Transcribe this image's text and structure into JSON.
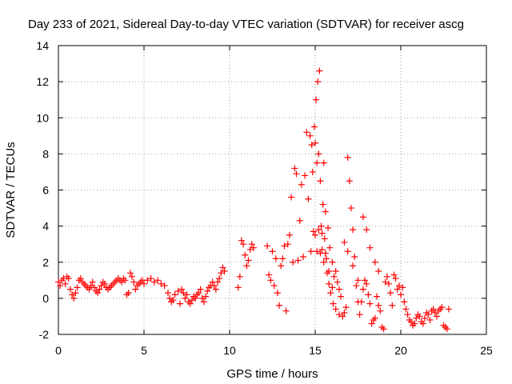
{
  "chart_data": {
    "type": "scatter",
    "title": "Day 233 of 2021, Sidereal Day-to-day VTEC variation (SDTVAR) for receiver ascg",
    "xlabel": "GPS time / hours",
    "ylabel": "SDTVAR / TECUs",
    "xlim": [
      0,
      25
    ],
    "ylim": [
      -2,
      14
    ],
    "xticks": [
      "0",
      "5",
      "10",
      "15",
      "20",
      "25"
    ],
    "yticks": [
      "-2",
      "0",
      "2",
      "4",
      "6",
      "8",
      "10",
      "12",
      "14"
    ],
    "grid": true,
    "marker": "+",
    "series_color": "#ff0000",
    "series": [
      {
        "name": "SDTVAR",
        "points": [
          [
            0.0,
            0.9
          ],
          [
            0.1,
            0.7
          ],
          [
            0.2,
            1.0
          ],
          [
            0.3,
            1.1
          ],
          [
            0.4,
            0.8
          ],
          [
            0.5,
            1.2
          ],
          [
            0.6,
            1.1
          ],
          [
            0.7,
            0.5
          ],
          [
            0.8,
            0.2
          ],
          [
            0.9,
            0.0
          ],
          [
            1.0,
            0.3
          ],
          [
            1.1,
            0.6
          ],
          [
            1.2,
            1.0
          ],
          [
            1.3,
            1.1
          ],
          [
            1.4,
            0.9
          ],
          [
            1.5,
            0.8
          ],
          [
            1.6,
            0.7
          ],
          [
            1.7,
            0.6
          ],
          [
            1.8,
            0.5
          ],
          [
            1.9,
            0.7
          ],
          [
            2.0,
            0.9
          ],
          [
            2.1,
            0.6
          ],
          [
            2.2,
            0.4
          ],
          [
            2.3,
            0.3
          ],
          [
            2.4,
            0.5
          ],
          [
            2.5,
            0.7
          ],
          [
            2.6,
            0.9
          ],
          [
            2.7,
            0.8
          ],
          [
            2.8,
            0.6
          ],
          [
            2.9,
            0.5
          ],
          [
            3.0,
            0.6
          ],
          [
            3.1,
            0.7
          ],
          [
            3.2,
            0.8
          ],
          [
            3.3,
            0.9
          ],
          [
            3.4,
            1.0
          ],
          [
            3.5,
            1.1
          ],
          [
            3.6,
            1.0
          ],
          [
            3.7,
            0.9
          ],
          [
            3.8,
            1.1
          ],
          [
            3.9,
            1.0
          ],
          [
            4.0,
            0.2
          ],
          [
            4.1,
            0.3
          ],
          [
            4.2,
            1.4
          ],
          [
            4.3,
            1.2
          ],
          [
            4.4,
            0.9
          ],
          [
            4.5,
            0.5
          ],
          [
            4.6,
            0.7
          ],
          [
            4.7,
            0.8
          ],
          [
            4.8,
            0.9
          ],
          [
            4.9,
            1.0
          ],
          [
            5.0,
            0.8
          ],
          [
            5.2,
            1.0
          ],
          [
            5.4,
            1.1
          ],
          [
            5.6,
            0.9
          ],
          [
            5.8,
            1.0
          ],
          [
            6.0,
            0.8
          ],
          [
            6.2,
            0.7
          ],
          [
            6.4,
            0.3
          ],
          [
            6.5,
            0.0
          ],
          [
            6.6,
            -0.2
          ],
          [
            6.7,
            -0.1
          ],
          [
            6.8,
            0.2
          ],
          [
            7.0,
            0.4
          ],
          [
            7.1,
            -0.3
          ],
          [
            7.2,
            0.5
          ],
          [
            7.3,
            0.3
          ],
          [
            7.4,
            0.0
          ],
          [
            7.5,
            0.2
          ],
          [
            7.6,
            -0.2
          ],
          [
            7.7,
            -0.3
          ],
          [
            7.8,
            -0.1
          ],
          [
            7.9,
            0.1
          ],
          [
            8.0,
            0.0
          ],
          [
            8.1,
            0.2
          ],
          [
            8.2,
            0.3
          ],
          [
            8.3,
            0.5
          ],
          [
            8.4,
            0.0
          ],
          [
            8.5,
            -0.2
          ],
          [
            8.6,
            0.1
          ],
          [
            8.7,
            0.4
          ],
          [
            8.8,
            0.6
          ],
          [
            8.9,
            0.7
          ],
          [
            9.0,
            0.9
          ],
          [
            9.1,
            0.7
          ],
          [
            9.2,
            0.5
          ],
          [
            9.3,
            0.9
          ],
          [
            9.4,
            1.1
          ],
          [
            9.5,
            1.4
          ],
          [
            9.6,
            1.7
          ],
          [
            9.7,
            1.5
          ],
          [
            10.5,
            0.6
          ],
          [
            10.6,
            1.2
          ],
          [
            10.7,
            3.2
          ],
          [
            10.8,
            3.0
          ],
          [
            10.9,
            2.4
          ],
          [
            11.0,
            1.8
          ],
          [
            11.1,
            2.1
          ],
          [
            11.2,
            2.7
          ],
          [
            11.3,
            3.0
          ],
          [
            11.4,
            2.8
          ],
          [
            12.2,
            2.9
          ],
          [
            12.3,
            1.3
          ],
          [
            12.4,
            1.0
          ],
          [
            12.5,
            2.6
          ],
          [
            12.6,
            0.7
          ],
          [
            12.7,
            2.2
          ],
          [
            12.8,
            0.3
          ],
          [
            12.9,
            -0.4
          ],
          [
            13.0,
            1.8
          ],
          [
            13.1,
            2.2
          ],
          [
            13.2,
            2.9
          ],
          [
            13.3,
            -0.7
          ],
          [
            13.4,
            3.0
          ],
          [
            13.5,
            3.5
          ],
          [
            13.6,
            5.6
          ],
          [
            13.7,
            2.0
          ],
          [
            13.8,
            7.2
          ],
          [
            13.9,
            6.9
          ],
          [
            14.0,
            2.1
          ],
          [
            14.1,
            4.3
          ],
          [
            14.2,
            6.3
          ],
          [
            14.3,
            2.3
          ],
          [
            14.4,
            6.8
          ],
          [
            14.5,
            9.2
          ],
          [
            14.6,
            5.5
          ],
          [
            14.7,
            9.0
          ],
          [
            14.75,
            2.6
          ],
          [
            14.8,
            8.5
          ],
          [
            14.85,
            7.0
          ],
          [
            14.9,
            3.7
          ],
          [
            14.95,
            9.5
          ],
          [
            15.0,
            8.6
          ],
          [
            15.05,
            11.0
          ],
          [
            15.1,
            7.5
          ],
          [
            15.15,
            12.0
          ],
          [
            15.2,
            8.0
          ],
          [
            15.25,
            12.6
          ],
          [
            15.3,
            6.5
          ],
          [
            15.35,
            4.0
          ],
          [
            15.4,
            2.7
          ],
          [
            15.45,
            5.2
          ],
          [
            15.5,
            7.5
          ],
          [
            15.55,
            3.3
          ],
          [
            15.6,
            4.8
          ],
          [
            15.65,
            2.2
          ],
          [
            15.7,
            1.4
          ],
          [
            15.75,
            3.9
          ],
          [
            15.8,
            0.8
          ],
          [
            15.85,
            2.8
          ],
          [
            15.9,
            0.3
          ],
          [
            16.0,
            2.0
          ],
          [
            16.05,
            -0.3
          ],
          [
            16.1,
            1.2
          ],
          [
            16.2,
            -0.6
          ],
          [
            16.3,
            0.9
          ],
          [
            16.4,
            -0.9
          ],
          [
            16.5,
            0.1
          ],
          [
            16.6,
            -1.0
          ],
          [
            16.7,
            -0.8
          ],
          [
            16.8,
            -0.5
          ],
          [
            16.9,
            7.8
          ],
          [
            17.0,
            6.5
          ],
          [
            17.1,
            5.0
          ],
          [
            17.2,
            3.8
          ],
          [
            17.3,
            2.3
          ],
          [
            17.4,
            0.7
          ],
          [
            17.5,
            -0.2
          ],
          [
            17.6,
            -0.9
          ],
          [
            17.7,
            -0.2
          ],
          [
            17.8,
            0.5
          ],
          [
            17.9,
            1.0
          ],
          [
            18.0,
            0.8
          ],
          [
            18.1,
            0.2
          ],
          [
            18.2,
            -0.3
          ],
          [
            18.3,
            -1.4
          ],
          [
            18.4,
            -1.2
          ],
          [
            18.5,
            -1.1
          ],
          [
            18.6,
            0.1
          ],
          [
            18.7,
            -0.4
          ],
          [
            18.8,
            -0.7
          ],
          [
            18.9,
            -1.6
          ],
          [
            19.0,
            -1.7
          ],
          [
            19.1,
            0.9
          ],
          [
            19.2,
            1.2
          ],
          [
            19.3,
            0.8
          ],
          [
            19.4,
            0.3
          ],
          [
            19.5,
            -0.4
          ],
          [
            19.6,
            1.3
          ],
          [
            19.7,
            1.1
          ],
          [
            19.8,
            0.5
          ],
          [
            19.9,
            0.7
          ],
          [
            20.0,
            0.2
          ],
          [
            20.1,
            0.6
          ],
          [
            20.2,
            -0.2
          ],
          [
            20.3,
            -0.6
          ],
          [
            20.4,
            -0.9
          ],
          [
            20.5,
            -1.2
          ],
          [
            20.6,
            -1.3
          ],
          [
            20.7,
            -1.5
          ],
          [
            20.8,
            -1.4
          ],
          [
            20.9,
            -1.1
          ],
          [
            21.0,
            -0.9
          ],
          [
            21.1,
            -1.0
          ],
          [
            21.2,
            -1.3
          ],
          [
            21.3,
            -1.4
          ],
          [
            21.4,
            -1.1
          ],
          [
            21.5,
            -0.8
          ],
          [
            21.6,
            -0.9
          ],
          [
            21.7,
            -1.2
          ],
          [
            21.8,
            -0.7
          ],
          [
            21.9,
            -0.6
          ],
          [
            22.0,
            -0.8
          ],
          [
            22.1,
            -1.0
          ],
          [
            22.2,
            -0.7
          ],
          [
            22.3,
            -0.6
          ],
          [
            22.4,
            -0.5
          ],
          [
            22.5,
            -1.5
          ],
          [
            22.6,
            -1.6
          ],
          [
            22.7,
            -1.7
          ],
          [
            22.8,
            -0.6
          ],
          [
            15.0,
            3.5
          ],
          [
            15.2,
            3.8
          ],
          [
            15.4,
            3.6
          ],
          [
            15.6,
            2.5
          ],
          [
            15.8,
            1.5
          ],
          [
            16.0,
            0.6
          ],
          [
            16.2,
            1.5
          ],
          [
            16.4,
            0.5
          ],
          [
            16.7,
            3.1
          ],
          [
            16.9,
            2.6
          ],
          [
            17.2,
            1.8
          ],
          [
            17.5,
            1.0
          ],
          [
            17.8,
            4.5
          ],
          [
            18.0,
            3.8
          ],
          [
            18.2,
            2.8
          ],
          [
            18.5,
            2.0
          ],
          [
            18.7,
            1.5
          ],
          [
            15.1,
            2.6
          ],
          [
            15.3,
            2.5
          ],
          [
            15.5,
            2.0
          ]
        ]
      }
    ]
  }
}
